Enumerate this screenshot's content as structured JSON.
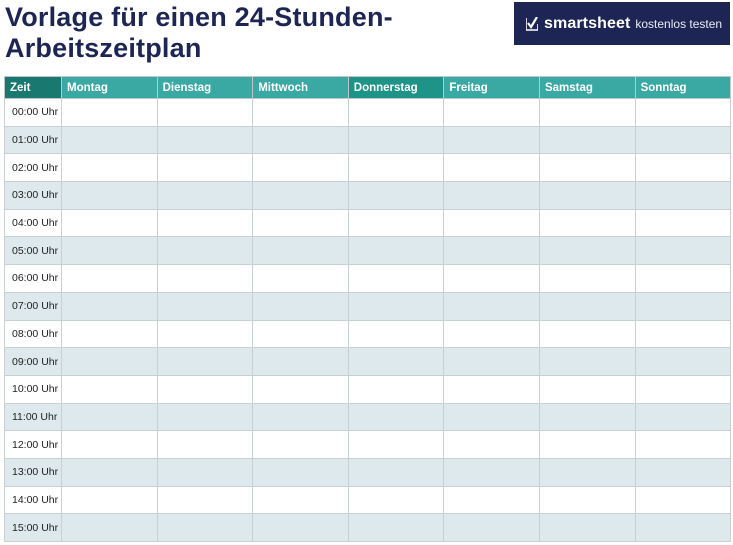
{
  "title": {
    "line1": "Vorlage für einen 24-Stunden-",
    "line2": "Arbeitszeitplan"
  },
  "brand": {
    "name": "smartsheet",
    "cta": "kostenlos testen",
    "icon": "checkmark-icon",
    "background": "#1d2554"
  },
  "colors": {
    "header_dark": "#19786f",
    "header_mid": "#1e9488",
    "header_light": "#3aa9a4",
    "row_alt": "#dde9ec",
    "title": "#1d2554"
  },
  "table": {
    "headers": [
      "Zeit",
      "Montag",
      "Dienstag",
      "Mittwoch",
      "Donnerstag",
      "Freitag",
      "Samstag",
      "Sonntag"
    ],
    "times": [
      "00:00 Uhr",
      "01:00 Uhr",
      "02:00 Uhr",
      "03:00 Uhr",
      "04:00 Uhr",
      "05:00 Uhr",
      "06:00 Uhr",
      "07:00 Uhr",
      "08:00 Uhr",
      "09:00 Uhr",
      "10:00 Uhr",
      "11:00 Uhr",
      "12:00 Uhr",
      "13:00 Uhr",
      "14:00 Uhr",
      "15:00 Uhr"
    ]
  }
}
